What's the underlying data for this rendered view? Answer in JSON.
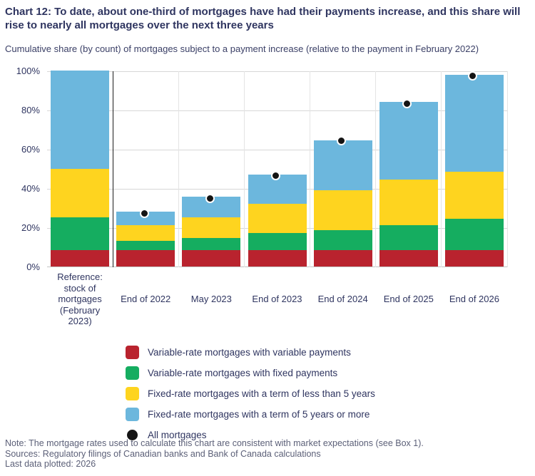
{
  "chart": {
    "title": "Chart 12: To date, about one-third of mortgages have had their payments increase, and this share will rise to nearly all mortgages over the next three years",
    "subtitle": "Cumulative share (by count) of mortgages subject to a payment increase (relative to the payment in February 2022)"
  },
  "chart_data": {
    "type": "bar",
    "stacked": true,
    "title": "Chart 12: To date, about one-third of mortgages have had their payments increase, and this share will rise to nearly all mortgages over the next three years",
    "subtitle": "Cumulative share (by count) of mortgages subject to a payment increase (relative to the payment in February 2022)",
    "categories": [
      "Reference: stock of mortgages (February 2023)",
      "End of 2022",
      "May 2023",
      "End of 2023",
      "End of 2024",
      "End of 2025",
      "End of 2026"
    ],
    "series": [
      {
        "name": "Variable-rate mortgages with variable payments",
        "color": "#B9232E",
        "values": [
          8.5,
          8.5,
          8.5,
          8.5,
          8.5,
          8.5,
          8.5
        ]
      },
      {
        "name": "Variable-rate mortgages with fixed payments",
        "color": "#15AD60",
        "values": [
          16.5,
          4.5,
          6,
          8.5,
          10,
          12.5,
          16
        ]
      },
      {
        "name": "Fixed-rate mortgages with a term of less than 5 years",
        "color": "#FED41F",
        "values": [
          25,
          8,
          10.5,
          15,
          20.5,
          23.5,
          24
        ]
      },
      {
        "name": "Fixed-rate mortgages with a term of 5 years or more",
        "color": "#6CB7DD",
        "values": [
          50,
          7,
          10.5,
          15,
          25.5,
          39.5,
          49.5
        ]
      }
    ],
    "dot_series": {
      "name": "All mortgages",
      "color": "#141414",
      "values": [
        null,
        28,
        35.5,
        47,
        65,
        84,
        98
      ]
    },
    "bar_totals": [
      100,
      28,
      35.5,
      47,
      64.5,
      84,
      98
    ],
    "xlabel": "",
    "ylabel": "",
    "ylim": [
      0,
      100
    ],
    "yticks": [
      "0%",
      "20%",
      "40%",
      "60%",
      "80%",
      "100%"
    ],
    "ytick_values": [
      0,
      20,
      40,
      60,
      80,
      100
    ],
    "grid": true,
    "reference_separator_after_first_category": true,
    "legend_position": "bottom"
  },
  "footer": {
    "note": "Note: The mortgage rates used to calculate this chart are consistent with market expectations (see Box 1).",
    "sources": "Sources: Regulatory filings of Canadian banks and Bank of Canada calculations",
    "last_data": "Last data plotted: 2026"
  }
}
